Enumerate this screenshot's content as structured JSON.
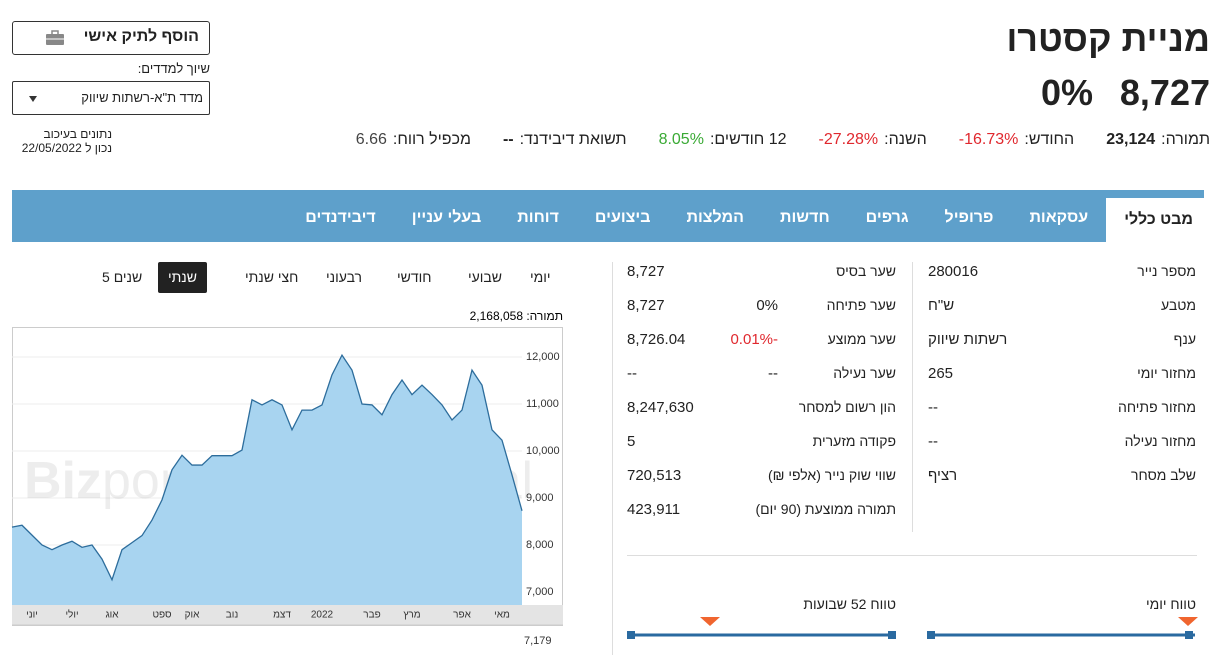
{
  "header": {
    "title": "מניית קסטרו",
    "price": "8,727",
    "change": "0%",
    "stats": [
      {
        "label": "תמורה:",
        "value": "23,124",
        "color": "#222222"
      },
      {
        "label": "החודש:",
        "value": "-16.73%",
        "color": "#e0282e"
      },
      {
        "label": "השנה:",
        "value": "-27.28%",
        "color": "#e0282e"
      },
      {
        "label": "12 חודשים:",
        "value": "8.05%",
        "color": "#3aaa35"
      },
      {
        "label": "תשואת דיבידנד:",
        "value": "--",
        "color": "#222222"
      },
      {
        "label": "מכפיל רווח:",
        "value": "6.66",
        "color": "#444444"
      }
    ]
  },
  "actions": {
    "add_button": "הוסף לתיק אישי",
    "index_label": "שיוך למדדים:",
    "index_select": "מדד ת\"א-רשתות שיווק",
    "delay_note": "נתונים בעיכוב",
    "as_of": "נכון ל 22/05/2022"
  },
  "tabs": {
    "items": [
      "מבט כללי",
      "עסקאות",
      "פרופיל",
      "גרפים",
      "חדשות",
      "המלצות",
      "ביצועים",
      "דוחות",
      "בעלי עניין",
      "דיבידנדים"
    ],
    "selected": "מבט כללי"
  },
  "periods": {
    "items": [
      "יומי",
      "שבועי",
      "חודשי",
      "רבעוני",
      "חצי שנתי",
      "שנתי",
      "5 שנים"
    ],
    "selected": "שנתי"
  },
  "chart_data": {
    "type": "area",
    "turnover_label": "תמורה: 2,168,058",
    "watermark_bold": "Biz",
    "watermark_light": "portal",
    "volume_label": "7,179",
    "color": "#a8d4f0",
    "line_color": "#2d6d9c",
    "grid": true,
    "categories": [
      null,
      null,
      "יוני",
      null,
      null,
      null,
      "יולי",
      null,
      null,
      null,
      "אוג",
      null,
      null,
      null,
      null,
      "ספט",
      null,
      null,
      "אוק",
      null,
      null,
      null,
      "נוב",
      null,
      null,
      null,
      null,
      "דצמ",
      null,
      null,
      null,
      "2022",
      null,
      null,
      null,
      null,
      "פבר",
      null,
      null,
      null,
      "מרץ",
      null,
      null,
      null,
      null,
      "אפר",
      null,
      null,
      null,
      "מאי",
      null,
      null
    ],
    "values": [
      8380,
      8420,
      8210,
      8000,
      7900,
      8000,
      8080,
      7950,
      8000,
      7700,
      7260,
      7900,
      8050,
      8200,
      8530,
      8960,
      9600,
      9910,
      9700,
      9700,
      9900,
      9900,
      9900,
      10020,
      11090,
      10980,
      11090,
      10980,
      10450,
      10870,
      10870,
      10980,
      11620,
      12040,
      11720,
      11000,
      10980,
      10770,
      11200,
      11510,
      11200,
      11400,
      11200,
      10980,
      10660,
      10870,
      11720,
      11400,
      10450,
      10230,
      9490,
      8727
    ],
    "ylim": [
      6723,
      12638
    ],
    "yticks": [
      {
        "value": 7000,
        "label": "7,000"
      },
      {
        "value": 8000,
        "label": "8,000"
      },
      {
        "value": 9000,
        "label": "9,000"
      },
      {
        "value": 10000,
        "label": "10,000"
      },
      {
        "value": 11000,
        "label": "11,000"
      },
      {
        "value": 12000,
        "label": "12,000"
      }
    ]
  },
  "info": {
    "right": [
      {
        "label": "מספר נייר",
        "value": "280016"
      },
      {
        "label": "מטבע",
        "value": "ש\"ח"
      },
      {
        "label": "ענף",
        "value": "רשתות שיווק"
      },
      {
        "label": "מחזור יומי",
        "value": "265"
      },
      {
        "label": "מחזור פתיחה",
        "value": "--"
      },
      {
        "label": "מחזור נעילה",
        "value": "--"
      },
      {
        "label": "שלב מסחר",
        "value": "רציף"
      }
    ],
    "middle": [
      {
        "label": "שער בסיס",
        "value": "8,727"
      },
      {
        "label": "שער פתיחה",
        "value": "8,727",
        "change": "0%",
        "change_color": "#222222"
      },
      {
        "label": "שער ממוצע",
        "value": "8,726.04",
        "change": "0.01%-",
        "change_color": "#e0282e"
      },
      {
        "label": "שער נעילה",
        "value": "--",
        "change": "--",
        "change_color": "#222222"
      },
      {
        "label": "הון רשום למסחר",
        "value": "8,247,630"
      },
      {
        "label": "פקודה מזערית",
        "value": "5"
      },
      {
        "label": "שווי שוק נייר (אלפי ₪)",
        "value": "720,513"
      },
      {
        "label": "תמורה ממוצעת (90 יום)",
        "value": "423,911"
      }
    ]
  },
  "ranges": {
    "daily": "טווח יומי",
    "week52": "טווח 52 שבועות"
  }
}
